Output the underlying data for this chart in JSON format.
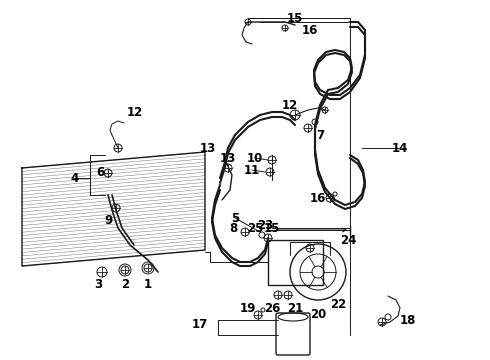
{
  "background_color": "#ffffff",
  "line_color": "#1a1a1a",
  "label_color": "#000000",
  "font_size": 8.5,
  "fig_width": 4.9,
  "fig_height": 3.6,
  "dpi": 100
}
